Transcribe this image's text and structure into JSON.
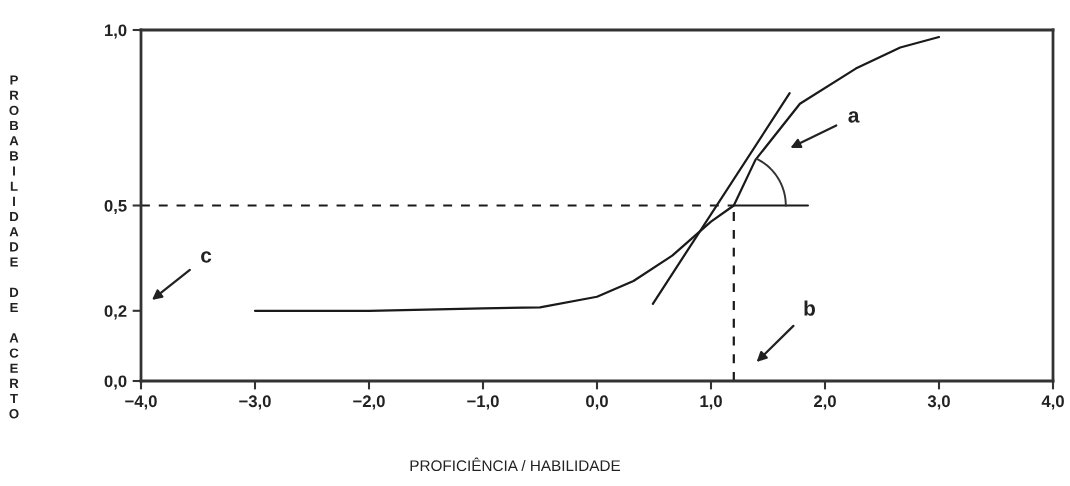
{
  "chart_data": {
    "type": "line",
    "xlabel": "PROFICIÊNCIA / HABILIDADE",
    "ylabel": "PROBABILIDADE DE ACERTO",
    "xlim": [
      -4,
      4
    ],
    "ylim": [
      0,
      1
    ],
    "xticks": [
      {
        "value": -4,
        "label": "−4,0"
      },
      {
        "value": -3,
        "label": "−3,0"
      },
      {
        "value": -2,
        "label": "−2,0"
      },
      {
        "value": -1,
        "label": "−1,0"
      },
      {
        "value": 0,
        "label": "0,0"
      },
      {
        "value": 1,
        "label": "1,0"
      },
      {
        "value": 2,
        "label": "2,0"
      },
      {
        "value": 3,
        "label": "3,0"
      },
      {
        "value": 4,
        "label": "4,0"
      }
    ],
    "yticks": [
      {
        "value": 0,
        "label": "0,0"
      },
      {
        "value": 0.2,
        "label": "0,2"
      },
      {
        "value": 0.5,
        "label": "0,5"
      },
      {
        "value": 1,
        "label": "1,0"
      }
    ],
    "grid": false,
    "marker": "none",
    "series": [
      {
        "color": "#1a1a1a",
        "line_style": "solid",
        "x": [
          -3,
          -2,
          -1,
          -0.5,
          0,
          0.32,
          0.66,
          1.0,
          1.2,
          1.39,
          1.78,
          2.27,
          2.66,
          3.0
        ],
        "values": [
          0.2,
          0.2,
          0.207,
          0.21,
          0.24,
          0.285,
          0.357,
          0.454,
          0.5,
          0.63,
          0.79,
          0.89,
          0.95,
          0.98
        ]
      },
      {
        "color": "#1a1a1a",
        "line_style": "solid",
        "x": [
          0.49,
          1.69
        ],
        "values": [
          0.22,
          0.82
        ]
      },
      {
        "color": "#1a1a1a",
        "line_style": "solid",
        "x": [
          1.2,
          1.85
        ],
        "values": [
          0.5,
          0.5
        ]
      },
      {
        "color": "#1a1a1a",
        "line_style": "dashed",
        "x": [
          -4,
          1.2
        ],
        "values": [
          0.5,
          0.5
        ]
      },
      {
        "color": "#1a1a1a",
        "line_style": "dashed",
        "x": [
          1.2,
          1.2
        ],
        "values": [
          0,
          0.5
        ]
      }
    ],
    "annotations": [
      "a",
      "b",
      "c"
    ]
  }
}
